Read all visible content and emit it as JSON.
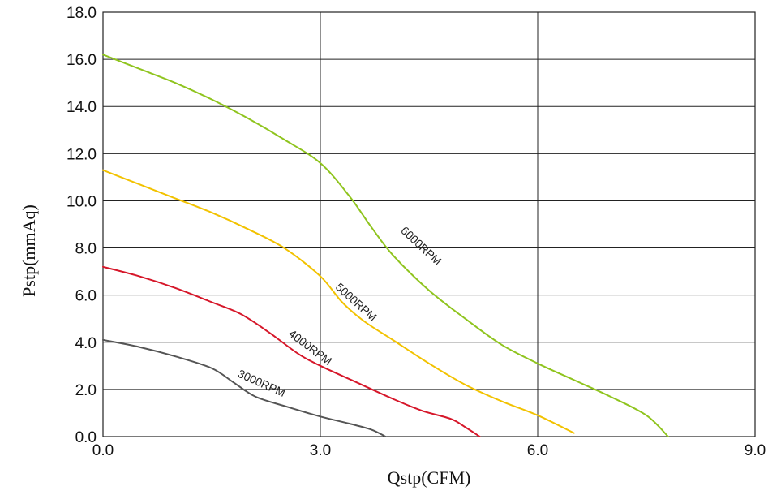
{
  "chart_data": {
    "type": "line",
    "title": "",
    "xlabel": "Qstp(CFM)",
    "ylabel": "Pstp(mmAq)",
    "xlim": [
      0,
      9
    ],
    "ylim": [
      0,
      18
    ],
    "x_ticks": [
      "0.0",
      "3.0",
      "6.0",
      "9.0"
    ],
    "x_tick_values": [
      0,
      3,
      6,
      9
    ],
    "y_ticks": [
      "0.0",
      "2.0",
      "4.0",
      "6.0",
      "8.0",
      "10.0",
      "12.0",
      "14.0",
      "16.0",
      "18.0"
    ],
    "y_tick_values": [
      0,
      2,
      4,
      6,
      8,
      10,
      12,
      14,
      16,
      18
    ],
    "grid": true,
    "series": [
      {
        "name": "3000RPM",
        "color": "#555555",
        "x": [
          0.0,
          0.5,
          1.0,
          1.5,
          1.8,
          2.1,
          2.5,
          3.0,
          3.4,
          3.7,
          3.9
        ],
        "y": [
          4.1,
          3.8,
          3.4,
          2.9,
          2.3,
          1.7,
          1.3,
          0.85,
          0.55,
          0.3,
          0.0
        ]
      },
      {
        "name": "4000RPM",
        "color": "#d6172a",
        "x": [
          0.0,
          0.5,
          1.0,
          1.5,
          1.9,
          2.3,
          2.7,
          3.0,
          3.5,
          4.0,
          4.4,
          4.8,
          5.0,
          5.2
        ],
        "y": [
          7.2,
          6.8,
          6.3,
          5.7,
          5.2,
          4.4,
          3.5,
          3.0,
          2.3,
          1.6,
          1.1,
          0.75,
          0.4,
          0.0
        ]
      },
      {
        "name": "5000RPM",
        "color": "#f2c200",
        "x": [
          0.0,
          0.5,
          1.0,
          1.5,
          2.0,
          2.5,
          3.0,
          3.3,
          3.6,
          4.0,
          4.5,
          5.0,
          5.5,
          6.0,
          6.5
        ],
        "y": [
          11.3,
          10.7,
          10.1,
          9.5,
          8.8,
          8.0,
          6.8,
          5.7,
          4.9,
          4.1,
          3.1,
          2.2,
          1.5,
          0.9,
          0.15
        ]
      },
      {
        "name": "6000RPM",
        "color": "#8fc41e",
        "x": [
          0.0,
          0.5,
          1.0,
          1.5,
          2.0,
          2.5,
          3.0,
          3.4,
          3.7,
          4.0,
          4.5,
          5.0,
          5.5,
          6.0,
          6.5,
          7.0,
          7.5,
          7.8
        ],
        "y": [
          16.2,
          15.6,
          15.0,
          14.3,
          13.5,
          12.6,
          11.6,
          10.2,
          8.9,
          7.7,
          6.2,
          5.0,
          3.9,
          3.1,
          2.4,
          1.7,
          0.9,
          0.0
        ]
      }
    ],
    "curve_labels": [
      {
        "text": "3000RPM",
        "x": 1.85,
        "y": 2.55,
        "angle": 24
      },
      {
        "text": "4000RPM",
        "x": 2.55,
        "y": 4.3,
        "angle": 37
      },
      {
        "text": "5000RPM",
        "x": 3.2,
        "y": 6.3,
        "angle": 42
      },
      {
        "text": "6000RPM",
        "x": 4.1,
        "y": 8.7,
        "angle": 43
      }
    ]
  }
}
